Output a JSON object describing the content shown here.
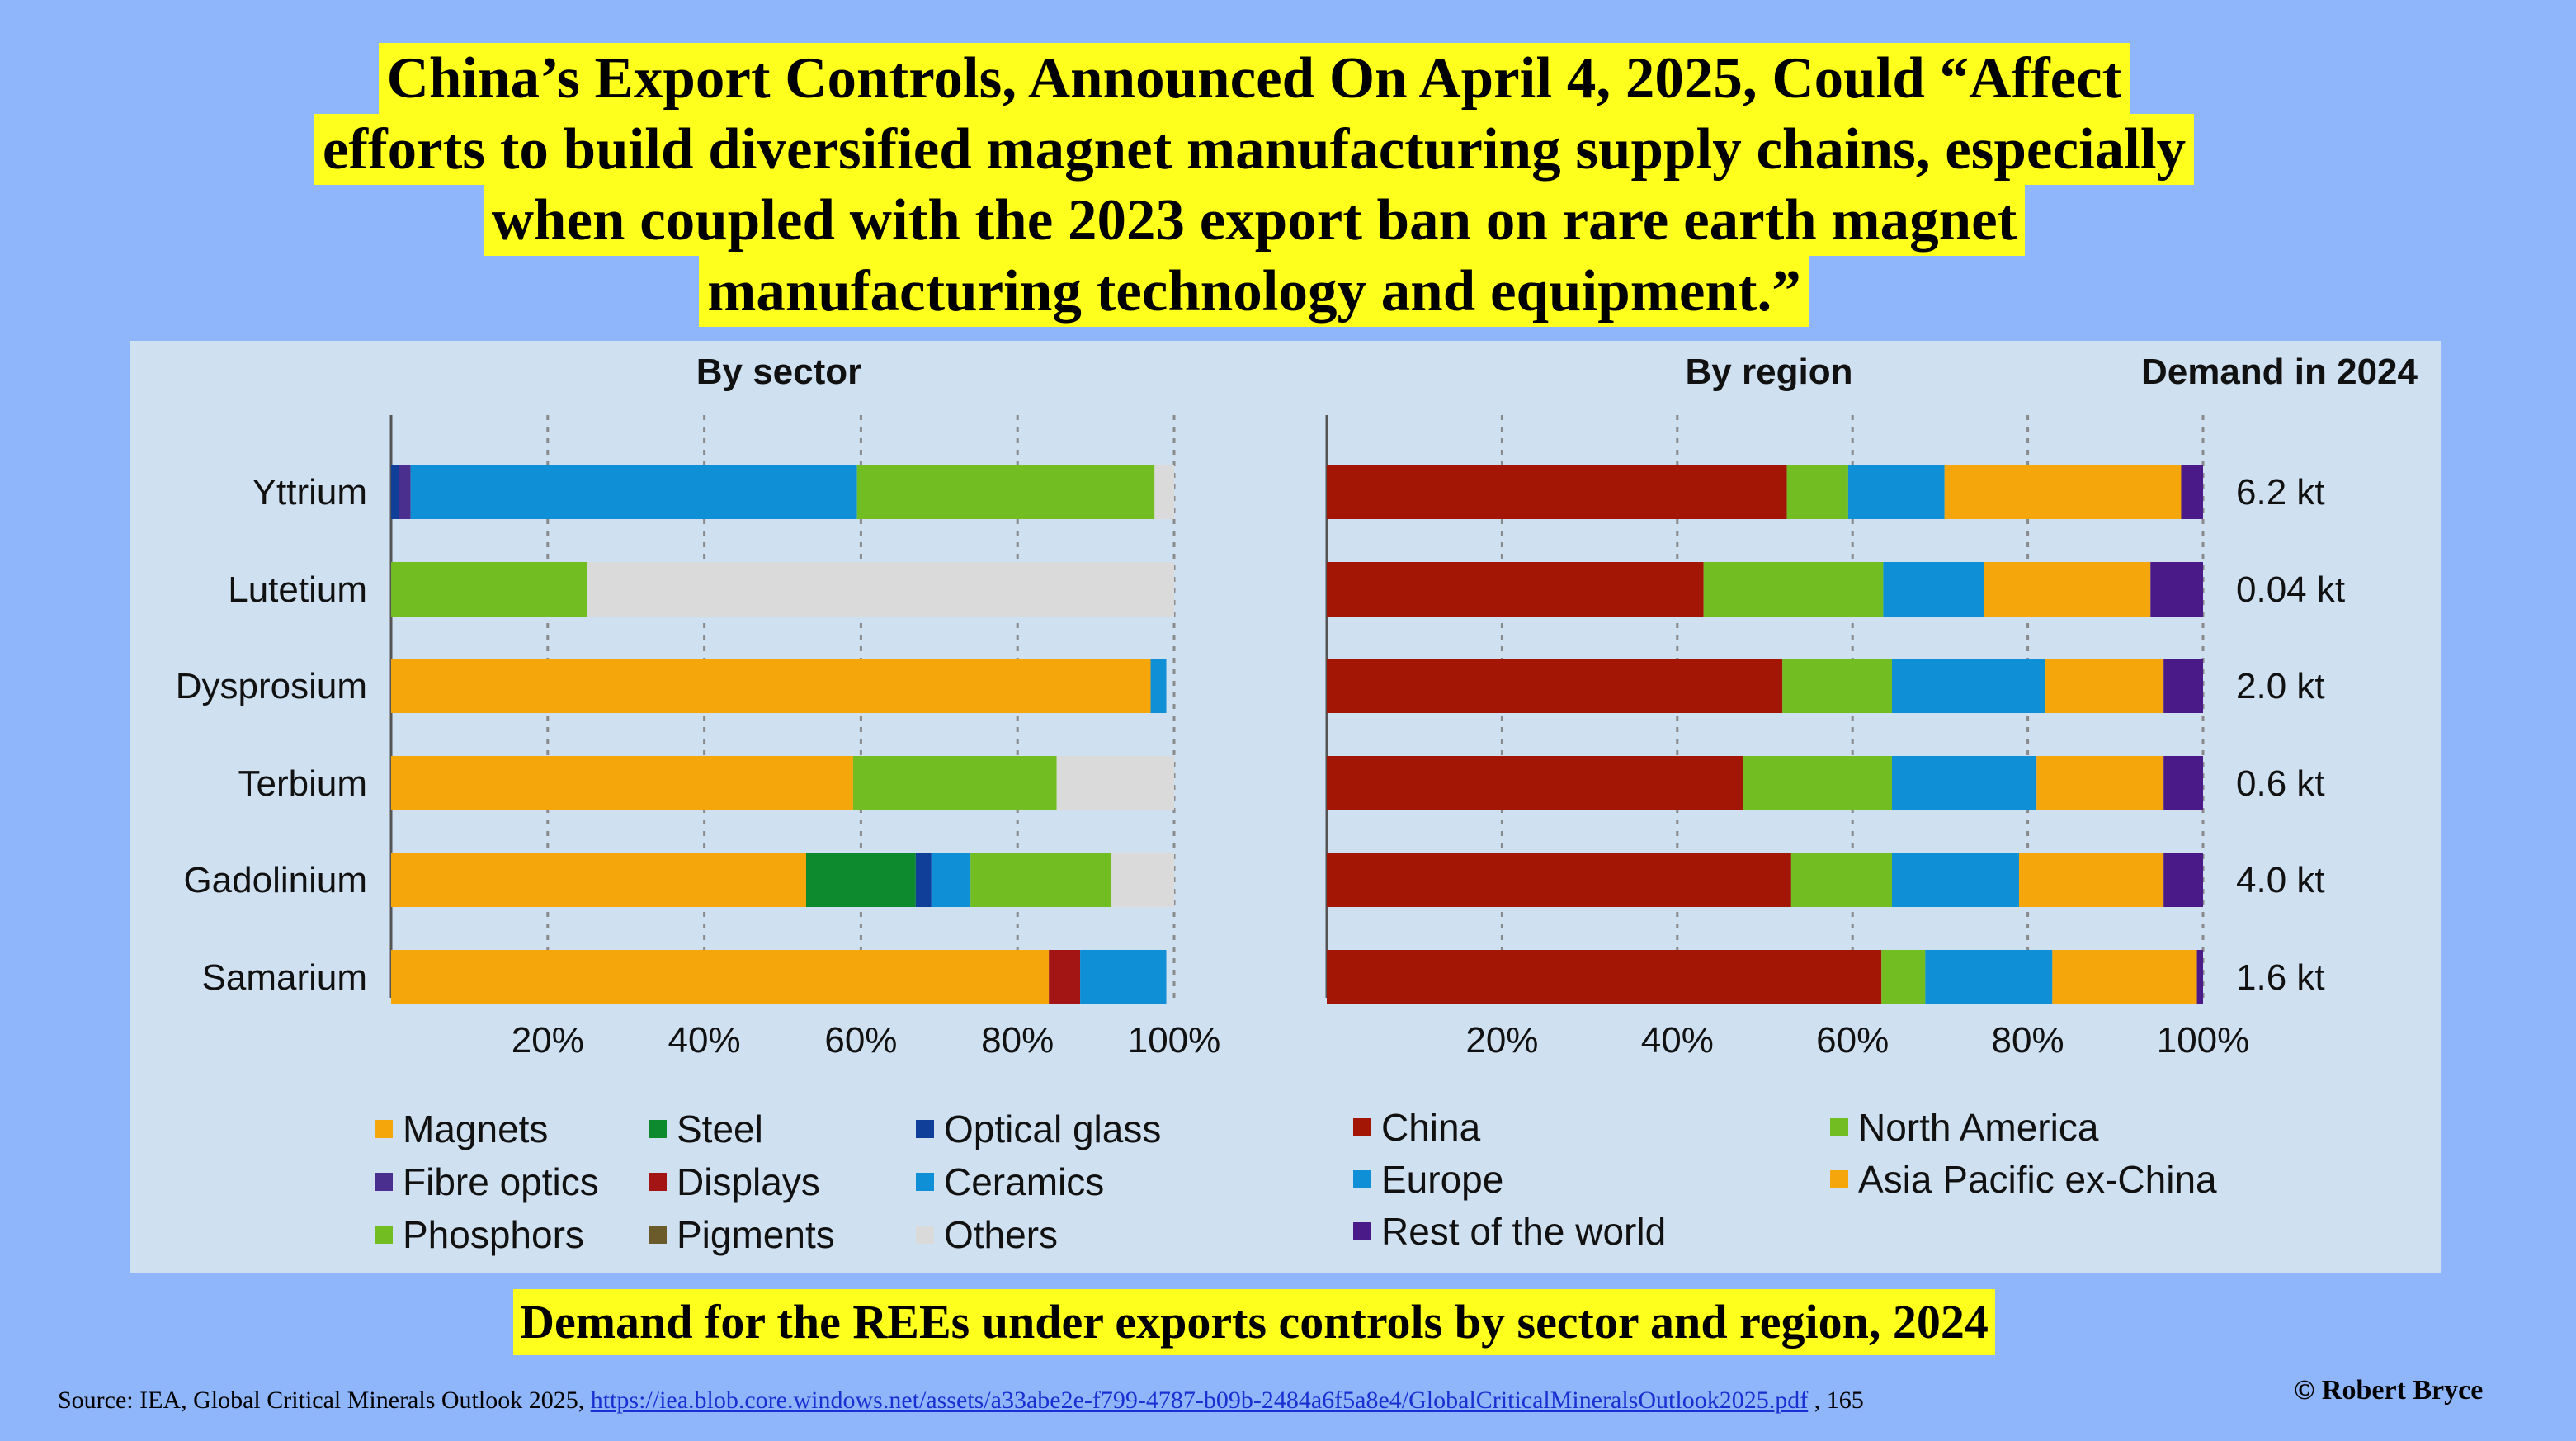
{
  "title_lines": [
    "China’s Export Controls, Announced On April 4, 2025,  Could “Affect",
    "efforts to build diversified magnet manufacturing supply chains, especially",
    "when coupled with the 2023 export ban on rare earth magnet",
    "manufacturing technology and equipment.”"
  ],
  "caption": "Demand for the REEs under exports controls by sector and region, 2024",
  "source": {
    "prefix": "Source: IEA, Global Critical Minerals Outlook 2025, ",
    "link_text": "https://iea.blob.core.windows.net/assets/a33abe2e-f799-4787-b09b-2484a6f5a8e4/GlobalCriticalMineralsOutlook2025.pdf",
    "suffix": " , 165"
  },
  "copyright": "© Robert Bryce",
  "chart_data": [
    {
      "type": "bar",
      "orientation": "horizontal",
      "stacked": true,
      "title": "By sector",
      "categories": [
        "Yttrium",
        "Lutetium",
        "Dysprosium",
        "Terbium",
        "Gadolinium",
        "Samarium"
      ],
      "xlim": [
        0,
        100
      ],
      "x_ticks": [
        "20%",
        "40%",
        "60%",
        "80%",
        "100%"
      ],
      "series": [
        {
          "name": "Magnets",
          "color": "#f5a60a",
          "values": [
            0,
            0,
            97,
            59,
            53,
            84
          ]
        },
        {
          "name": "Steel",
          "color": "#0e8a2e",
          "values": [
            0,
            0,
            0,
            0,
            14,
            0
          ]
        },
        {
          "name": "Optical glass",
          "color": "#103f9a",
          "values": [
            1,
            0,
            0,
            0,
            2,
            0
          ]
        },
        {
          "name": "Fibre optics",
          "color": "#4b2f8f",
          "values": [
            1.5,
            0,
            0,
            0,
            0,
            0
          ]
        },
        {
          "name": "Displays",
          "color": "#a31515",
          "values": [
            0,
            0,
            0,
            0,
            0,
            4
          ]
        },
        {
          "name": "Ceramics",
          "color": "#0f8fd6",
          "values": [
            57,
            0,
            2,
            0,
            5,
            11
          ]
        },
        {
          "name": "Phosphors",
          "color": "#72be22",
          "values": [
            38,
            25,
            0,
            26,
            18,
            0
          ]
        },
        {
          "name": "Pigments",
          "color": "#6b5a2a",
          "values": [
            0,
            0,
            0,
            0,
            0,
            0
          ]
        },
        {
          "name": "Others",
          "color": "#dadada",
          "values": [
            2.5,
            75,
            0,
            15,
            8,
            0
          ]
        }
      ],
      "legend_layout": [
        [
          "Magnets",
          "Steel",
          "Optical glass"
        ],
        [
          "Fibre optics",
          "Displays",
          "Ceramics"
        ],
        [
          "Phosphors",
          "Pigments",
          "Others"
        ]
      ]
    },
    {
      "type": "bar",
      "orientation": "horizontal",
      "stacked": true,
      "title": "By region",
      "value_column_title": "Demand in 2024",
      "categories": [
        "Yttrium",
        "Lutetium",
        "Dysprosium",
        "Terbium",
        "Gadolinium",
        "Samarium"
      ],
      "demand_labels": [
        "6.2 kt",
        "0.04 kt",
        "2.0 kt",
        "0.6 kt",
        "4.0 kt",
        "1.6 kt"
      ],
      "xlim": [
        0,
        100
      ],
      "x_ticks": [
        "20%",
        "40%",
        "60%",
        "80%",
        "100%"
      ],
      "series": [
        {
          "name": "China",
          "color": "#a31505",
          "values": [
            52.5,
            43,
            52,
            47.5,
            53,
            63.3
          ]
        },
        {
          "name": "North America",
          "color": "#72be22",
          "values": [
            7,
            20.5,
            12.5,
            17,
            11.5,
            5
          ]
        },
        {
          "name": "Europe",
          "color": "#0f8fd6",
          "values": [
            11,
            11.5,
            17.5,
            16.5,
            14.5,
            14.5
          ]
        },
        {
          "name": "Asia Pacific ex-China",
          "color": "#f5a60a",
          "values": [
            27,
            19,
            13.5,
            14.5,
            16.5,
            16.5
          ]
        },
        {
          "name": "Rest of the world",
          "color": "#4a1b88",
          "values": [
            2.5,
            6,
            4.5,
            4.5,
            4.5,
            0.7
          ]
        }
      ],
      "legend_layout": [
        [
          "China",
          "North America"
        ],
        [
          "Europe",
          "Asia Pacific ex-China"
        ],
        [
          "Rest of the world"
        ]
      ]
    }
  ]
}
